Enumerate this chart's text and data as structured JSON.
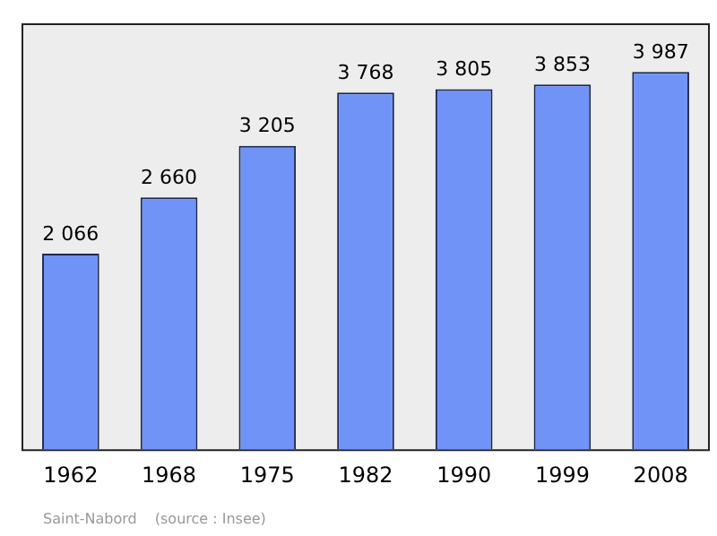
{
  "chart_data": {
    "type": "bar",
    "categories": [
      "1962",
      "1968",
      "1975",
      "1982",
      "1990",
      "1999",
      "2008"
    ],
    "values": [
      2066,
      2660,
      3205,
      3768,
      3805,
      3853,
      3987
    ],
    "value_labels": [
      "2 066",
      "2 660",
      "3 205",
      "3 768",
      "3 805",
      "3 853",
      "3 987"
    ],
    "color": "#7093f7",
    "relative": false,
    "grid": false,
    "legend": false,
    "annotations": [
      "Saint-Nabord",
      "(source : Insee)"
    ]
  }
}
